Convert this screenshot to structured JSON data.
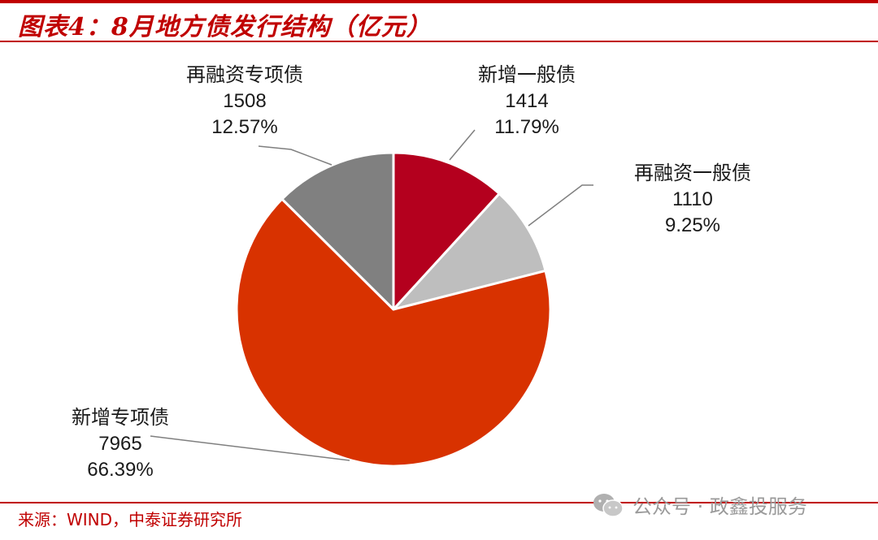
{
  "header": {
    "title": "图表4：8月地方债发行结构（亿元）"
  },
  "chart_data": {
    "type": "pie",
    "title": "8月地方债发行结构（亿元）",
    "unit": "亿元",
    "slices": [
      {
        "label": "新增一般债",
        "value": 1414,
        "value_text": "1414",
        "pct": "11.79%",
        "color": "#b4001e"
      },
      {
        "label": "再融资一般债",
        "value": 1110,
        "value_text": "1110",
        "pct": "9.25%",
        "color": "#bebebe"
      },
      {
        "label": "新增专项债",
        "value": 7965,
        "value_text": "7965",
        "pct": "66.39%",
        "color": "#d83200"
      },
      {
        "label": "再融资专项债",
        "value": 1508,
        "value_text": "1508",
        "pct": "12.57%",
        "color": "#808080"
      }
    ]
  },
  "footer": {
    "source": "来源：WIND，中泰证券研究所",
    "watermark": "公众号 · 政鑫投服务",
    "watermark_icon": "wechat-icon"
  }
}
